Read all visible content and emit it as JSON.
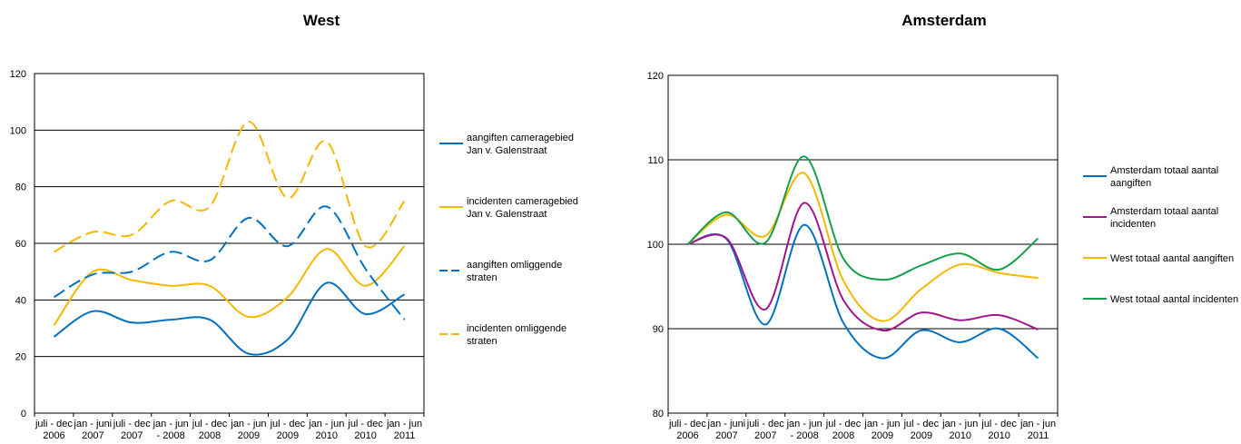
{
  "chart_data": [
    {
      "type": "line",
      "title": "West",
      "xlabel": "",
      "ylabel": "",
      "ylim": [
        0,
        120
      ],
      "yticks": [
        0,
        20,
        40,
        60,
        80,
        100,
        120
      ],
      "grid": "horizontal",
      "legend": "right",
      "categories": [
        [
          "juli - dec",
          "2006"
        ],
        [
          "jan - juni",
          "2007"
        ],
        [
          "juli - dec",
          "2007"
        ],
        [
          "jan - jun",
          "- 2008"
        ],
        [
          "jul - dec",
          "2008"
        ],
        [
          "jan - jun",
          "2009"
        ],
        [
          "jul - dec",
          "2009"
        ],
        [
          "jan - jun",
          "2010"
        ],
        [
          "jul - dec",
          "2010"
        ],
        [
          "jan - jun",
          "2011"
        ]
      ],
      "series": [
        {
          "name": "aangiften cameragebied Jan v. Galenstraat",
          "legend_lines": [
            "aangiften cameragebied",
            "Jan v. Galenstraat"
          ],
          "color": "#0070C0",
          "dash": "solid",
          "values": [
            27,
            36,
            32,
            33,
            33,
            21,
            26,
            46,
            35,
            42
          ]
        },
        {
          "name": "incidenten cameragebied Jan v. Galenstraat",
          "legend_lines": [
            "incidenten cameragebied",
            "Jan v. Galenstraat"
          ],
          "color": "#F5B800",
          "dash": "solid",
          "values": [
            31,
            50,
            47,
            45,
            45,
            34,
            41,
            58,
            45,
            59
          ]
        },
        {
          "name": "aangiften omliggende straten",
          "legend_lines": [
            "aangiften omliggende",
            "straten"
          ],
          "color": "#0070C0",
          "dash": "dashed",
          "values": [
            41,
            49,
            50,
            57,
            54,
            69,
            59,
            73,
            51,
            33
          ]
        },
        {
          "name": "incidenten omliggende straten",
          "legend_lines": [
            "incidenten omliggende",
            "straten"
          ],
          "color": "#F5B800",
          "dash": "dashed",
          "values": [
            57,
            64,
            63,
            75,
            73,
            103,
            76,
            96,
            59,
            75
          ]
        }
      ]
    },
    {
      "type": "line",
      "title": "Amsterdam",
      "xlabel": "",
      "ylabel": "",
      "ylim": [
        80,
        120
      ],
      "yticks": [
        80,
        90,
        100,
        110,
        120
      ],
      "grid": "horizontal",
      "legend": "right",
      "categories": [
        [
          "juli - dec",
          "2006"
        ],
        [
          "jan - juni",
          "2007"
        ],
        [
          "juli - dec",
          "2007"
        ],
        [
          "jan - jun",
          "- 2008"
        ],
        [
          "jul - dec",
          "2008"
        ],
        [
          "jan - jun",
          "2009"
        ],
        [
          "jul - dec",
          "2009"
        ],
        [
          "jan - jun",
          "2010"
        ],
        [
          "jul - dec",
          "2010"
        ],
        [
          "jan - jun",
          "2011"
        ]
      ],
      "series": [
        {
          "name": "Amsterdam totaal aantal aangiften",
          "legend_lines": [
            "Amsterdam totaal aantal",
            "aangiften"
          ],
          "color": "#0070C0",
          "dash": "solid",
          "values": [
            100,
            100.6,
            90.5,
            102.3,
            90.7,
            86.5,
            89.8,
            88.4,
            90,
            86.5
          ]
        },
        {
          "name": "Amsterdam totaal aantal incidenten",
          "legend_lines": [
            "Amsterdam totaal aantal",
            "incidenten"
          ],
          "color": "#A0148C",
          "dash": "solid",
          "values": [
            100,
            100.7,
            92.3,
            104.9,
            93.4,
            89.8,
            91.9,
            91,
            91.6,
            89.9
          ]
        },
        {
          "name": "West totaal aantal aangiften",
          "legend_lines": [
            "West totaal aantal aangiften"
          ],
          "color": "#F5B800",
          "dash": "solid",
          "values": [
            100,
            103.5,
            101,
            108.4,
            95.7,
            90.9,
            94.7,
            97.6,
            96.6,
            96
          ]
        },
        {
          "name": "West totaal aantal incidenten",
          "legend_lines": [
            "West totaal aantal incidenten"
          ],
          "color": "#17A04A",
          "dash": "solid",
          "values": [
            100,
            103.8,
            100.2,
            110.4,
            98.3,
            95.8,
            97.5,
            98.9,
            97,
            100.7
          ]
        }
      ]
    }
  ]
}
